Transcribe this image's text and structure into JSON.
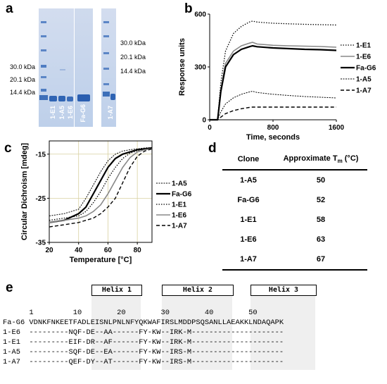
{
  "panels": {
    "a": "a",
    "b": "b",
    "c": "c",
    "d": "d",
    "e": "e"
  },
  "gel": {
    "mw_left": [
      "30.0 kDa",
      "20.1 kDa",
      "14.4 kDa"
    ],
    "mw_right": [
      "30.0 kDa",
      "20.1 kDa",
      "14.4 kDa"
    ],
    "lanes": [
      "1-E1",
      "1-A5",
      "1-E6",
      "Fa-G6",
      "1-A7"
    ]
  },
  "spr": {
    "ylabel": "Response units",
    "xlabel": "Time, seconds",
    "yticks": [
      "0",
      "300",
      "600"
    ],
    "xticks": [
      "0",
      "800",
      "1600"
    ],
    "legend": [
      "1-E1",
      "1-E6",
      "Fa-G6",
      "1-A5",
      "1-A7"
    ]
  },
  "cd": {
    "ylabel": "Circular Dichroism [mdeg]",
    "xlabel": "Temperature [°C]",
    "yticks": [
      "-15",
      "-25",
      "-35"
    ],
    "xticks": [
      "20",
      "40",
      "60",
      "80"
    ],
    "legend": [
      "1-A5",
      "Fa-G6",
      "1-E1",
      "1-E6",
      "1-A7"
    ]
  },
  "table": {
    "header_clone": "Clone",
    "header_tm_prefix": "Approximate T",
    "header_tm_sub": "m",
    "header_tm_suffix": " (°C)",
    "rows": [
      {
        "clone": "1-A5",
        "tm": "50"
      },
      {
        "clone": "Fa-G6",
        "tm": "52"
      },
      {
        "clone": "1-E1",
        "tm": "58"
      },
      {
        "clone": "1-E6",
        "tm": "63"
      },
      {
        "clone": "1-A7",
        "tm": "67"
      }
    ]
  },
  "seq": {
    "helices": [
      "Helix 1",
      "Helix 2",
      "Helix 3"
    ],
    "numbering": "      1         10        20        30        40        50",
    "lines": [
      "Fa-G6 VDNKFNKEETFADLEISNLPNLNFYQKWAFIRSLMDDPSQSANLLAEAKKLNDAQAPK",
      "1-E6  ---------NQF-DE--AA------FY-KW--IRK-M---------------------",
      "1-E1  ---------EIF-DR--AF------FY-KW--IRK-M---------------------",
      "1-A5  ---------SQF-DE--EA------FY-KW--IRS-M---------------------",
      "1-A7  ---------QEF-DY--AT------FY-KW--IRS-M---------------------"
    ]
  },
  "chart_data": [
    {
      "type": "line",
      "xlabel": "Time, seconds",
      "ylabel": "Response units",
      "xlim": [
        0,
        1600
      ],
      "ylim": [
        0,
        600
      ],
      "legend_position": "right",
      "x": [
        0,
        100,
        140,
        200,
        300,
        400,
        500,
        540,
        600,
        800,
        1000,
        1200,
        1400,
        1600
      ],
      "series": [
        {
          "name": "1-E1",
          "values": [
            0,
            0,
            210,
            390,
            490,
            530,
            555,
            560,
            555,
            548,
            545,
            542,
            540,
            538
          ]
        },
        {
          "name": "1-E6",
          "values": [
            0,
            0,
            170,
            320,
            390,
            420,
            435,
            440,
            430,
            423,
            420,
            418,
            416,
            412
          ]
        },
        {
          "name": "Fa-G6",
          "values": [
            0,
            0,
            160,
            300,
            370,
            400,
            415,
            420,
            415,
            408,
            404,
            400,
            398,
            394
          ]
        },
        {
          "name": "1-A5",
          "values": [
            0,
            0,
            45,
            90,
            125,
            145,
            158,
            162,
            155,
            145,
            138,
            132,
            128,
            124
          ]
        },
        {
          "name": "1-A7",
          "values": [
            0,
            0,
            15,
            35,
            52,
            63,
            70,
            72,
            72,
            72,
            72,
            72,
            72,
            72
          ]
        }
      ]
    },
    {
      "type": "line",
      "xlabel": "Temperature [°C]",
      "ylabel": "Circular Dichroism [mdeg]",
      "xlim": [
        20,
        90
      ],
      "ylim": [
        -35,
        -12
      ],
      "grid": true,
      "legend_position": "right",
      "x": [
        20,
        30,
        40,
        45,
        50,
        55,
        60,
        65,
        70,
        75,
        80,
        85,
        90
      ],
      "series": [
        {
          "name": "1-A5",
          "values": [
            -29,
            -28.5,
            -27.5,
            -25,
            -22,
            -19,
            -16.5,
            -15,
            -14.3,
            -14,
            -13.8,
            -13.6,
            -13.5
          ]
        },
        {
          "name": "Fa-G6",
          "values": [
            -30.5,
            -30,
            -28.5,
            -27,
            -24,
            -21,
            -18,
            -16,
            -15,
            -14.5,
            -14,
            -13.8,
            -13.6
          ]
        },
        {
          "name": "1-E1",
          "values": [
            -30,
            -29.5,
            -29,
            -28,
            -26,
            -23.5,
            -20.5,
            -18,
            -16,
            -14.8,
            -14.2,
            -13.8,
            -13.5
          ]
        },
        {
          "name": "1-E6",
          "values": [
            -30.5,
            -30,
            -29.5,
            -29,
            -28,
            -26.5,
            -24,
            -21,
            -18,
            -15.8,
            -14.5,
            -14,
            -13.8
          ]
        },
        {
          "name": "1-A7",
          "values": [
            -31.5,
            -31,
            -30.5,
            -30,
            -29.5,
            -28.5,
            -27,
            -25,
            -21.5,
            -18,
            -15.5,
            -14.3,
            -13.8
          ]
        }
      ]
    }
  ]
}
